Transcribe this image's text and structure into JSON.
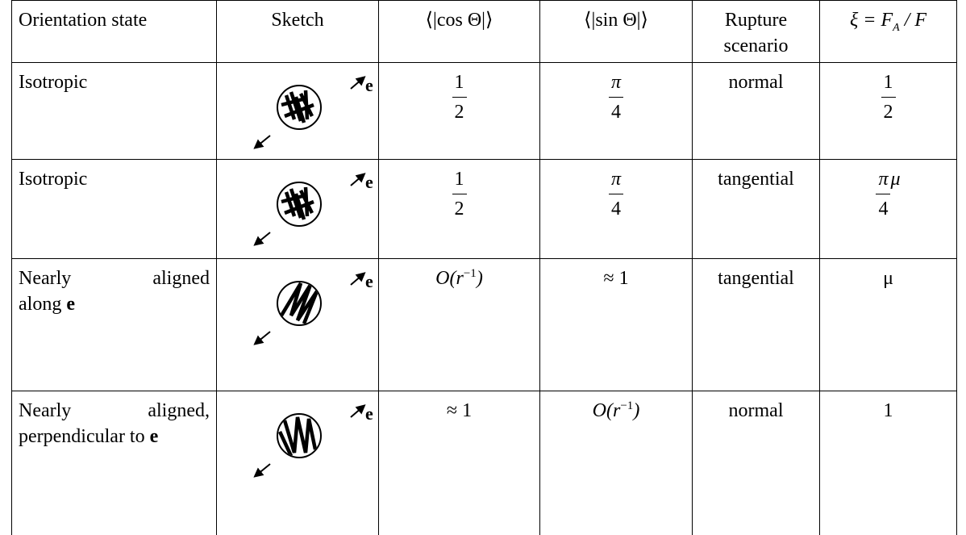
{
  "table": {
    "header": [
      "Orientation state",
      "Sketch",
      "⟨|cos Θ|⟩",
      "⟨|sin Θ|⟩",
      "Rupture scenario",
      {
        "main": "ξ = F",
        "sub": "A",
        "tail": " / F"
      }
    ],
    "rows": [
      [
        "Isotropic",
        "e",
        {
          "num": "1",
          "den": "2"
        },
        {
          "num": "π",
          "den": "4"
        },
        "normal",
        {
          "num": "1",
          "den": "2"
        }
      ],
      [
        "Isotropic",
        "e",
        {
          "num": "1",
          "den": "2"
        },
        {
          "num": "π",
          "den": "4"
        },
        "tangential",
        {
          "num": "π",
          "den": "4",
          "after": "μ"
        }
      ],
      [
        {
          "lines": [
            "Nearly aligned",
            "along "
          ],
          "bold": "e"
        },
        "e",
        {
          "main": "O(r",
          "sup": "−1",
          "tail": ")"
        },
        "≈ 1",
        "tangential",
        "μ"
      ],
      [
        {
          "lines": [
            "Nearly aligned,",
            "perpendicular to "
          ],
          "bold": "e"
        },
        "e",
        "≈ 1",
        {
          "main": "O(r",
          "sup": "−1",
          "tail": ")"
        },
        "normal",
        "1"
      ]
    ]
  }
}
